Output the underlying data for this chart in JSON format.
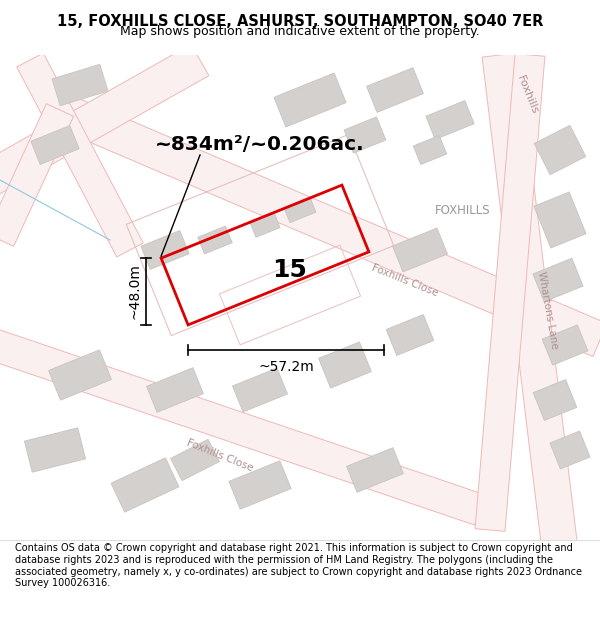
{
  "title_line1": "15, FOXHILLS CLOSE, ASHURST, SOUTHAMPTON, SO40 7ER",
  "title_line2": "Map shows position and indicative extent of the property.",
  "footer_text": "Contains OS data © Crown copyright and database right 2021. This information is subject to Crown copyright and database rights 2023 and is reproduced with the permission of HM Land Registry. The polygons (including the associated geometry, namely x, y co-ordinates) are subject to Crown copyright and database rights 2023 Ordnance Survey 100026316.",
  "area_label": "~834m²/~0.206ac.",
  "width_label": "~57.2m",
  "height_label": "~48.0m",
  "plot_number": "15",
  "map_bg": "#ffffff",
  "road_outline_color": "#f0b8b8",
  "road_fill_color": "#faf0f0",
  "building_fill": "#d4d0ce",
  "building_edge": "#c8c4c2",
  "plot_color": "#dd0000",
  "parcel_outline": "#e8c0c0",
  "foxhills_label": "FOXHILLS",
  "foxhills_close_label": "Foxhills Close",
  "whartons_lane_label": "Whartons Lane",
  "foxhills_road_label": "Foxhills",
  "blue_line_color": "#90c8e0",
  "dim_line_color": "#000000",
  "label_gray": "#aaaaaa",
  "road_label_color": "#b8a8a8"
}
